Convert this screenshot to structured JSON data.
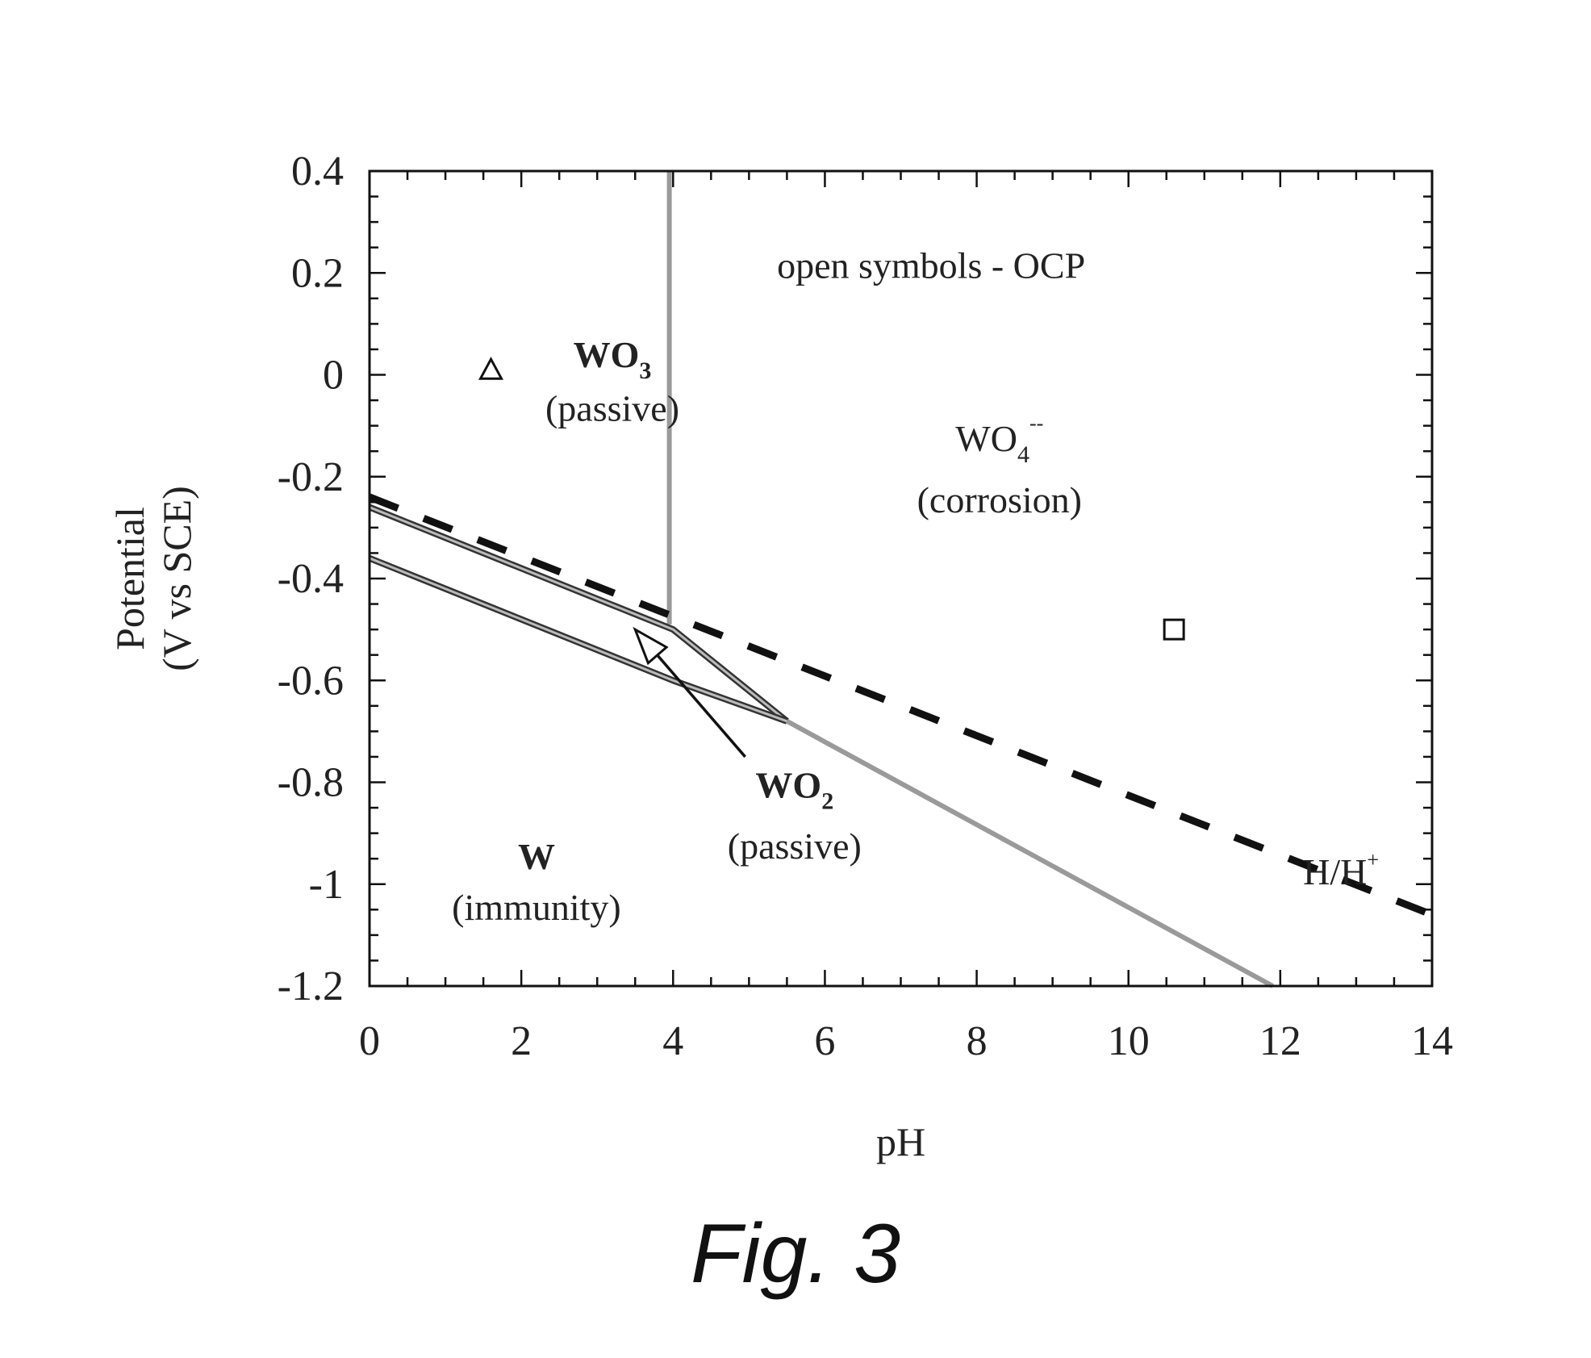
{
  "caption": "Fig. 3",
  "chart_data": {
    "type": "line",
    "xlabel": "pH",
    "ylabel_line1": "Potential",
    "ylabel_line2": "(V vs SCE)",
    "xlim": [
      0,
      14
    ],
    "ylim": [
      -1.2,
      0.4
    ],
    "xticks": [
      0,
      2,
      4,
      6,
      8,
      10,
      12,
      14
    ],
    "xtick_labels": [
      "0",
      "2",
      "4",
      "6",
      "8",
      "10",
      "12",
      "14"
    ],
    "yticks": [
      0.4,
      0.2,
      0,
      -0.2,
      -0.4,
      -0.6,
      -0.8,
      -1,
      -1.2
    ],
    "ytick_labels": [
      "0.4",
      "0.2",
      "0",
      "-0.2",
      "-0.4",
      "-0.6",
      "-0.8",
      "-1",
      "-1.2"
    ],
    "grid": false,
    "boundaries": [
      {
        "id": "wo3-wo4-boundary",
        "style": "gray",
        "points": [
          [
            3.95,
            0.4
          ],
          [
            3.95,
            -0.49
          ]
        ]
      },
      {
        "id": "wo3-wo2-boundary",
        "style": "double",
        "points": [
          [
            0,
            -0.26
          ],
          [
            4,
            -0.5
          ],
          [
            5.5,
            -0.68
          ]
        ]
      },
      {
        "id": "w-wo2-boundary",
        "style": "double",
        "points": [
          [
            0,
            -0.36
          ],
          [
            4,
            -0.6
          ],
          [
            5.5,
            -0.68
          ]
        ]
      },
      {
        "id": "wo2-wo4-boundary",
        "style": "gray",
        "points": [
          [
            5.5,
            -0.68
          ],
          [
            11.9,
            -1.2
          ]
        ]
      },
      {
        "id": "hydrogen-line",
        "style": "dashed",
        "points": [
          [
            0,
            -0.24
          ],
          [
            14,
            -1.06
          ]
        ]
      }
    ],
    "arrow": {
      "from": [
        4.95,
        -0.75
      ],
      "to": [
        3.5,
        -0.5
      ]
    },
    "markers": [
      {
        "shape": "triangle",
        "x": 1.6,
        "y": 0.01
      },
      {
        "shape": "square",
        "x": 10.6,
        "y": -0.5
      }
    ],
    "annotations": [
      {
        "id": "legend-note",
        "text": "open symbols - OCP",
        "x": 7.4,
        "y": 0.19,
        "bold": false
      },
      {
        "id": "wo3-name",
        "main": "WO",
        "sub": "3",
        "sup": "",
        "x": 3.2,
        "y": 0.015,
        "bold": true
      },
      {
        "id": "wo3-state",
        "text": "(passive)",
        "x": 3.2,
        "y": -0.09,
        "bold": false
      },
      {
        "id": "wo4-name",
        "main": "WO",
        "sub": "4",
        "sup": "--",
        "x": 8.3,
        "y": -0.15,
        "bold": false
      },
      {
        "id": "wo4-state",
        "text": "(corrosion)",
        "x": 8.3,
        "y": -0.27,
        "bold": false
      },
      {
        "id": "wo2-name",
        "main": "WO",
        "sub": "2",
        "sup": "",
        "x": 5.6,
        "y": -0.83,
        "bold": true
      },
      {
        "id": "wo2-state",
        "text": "(passive)",
        "x": 5.6,
        "y": -0.95,
        "bold": false
      },
      {
        "id": "w-name",
        "text": "W",
        "x": 2.2,
        "y": -0.97,
        "bold": true
      },
      {
        "id": "w-state",
        "text": "(immunity)",
        "x": 2.2,
        "y": -1.07,
        "bold": false
      },
      {
        "id": "hydrogen-label",
        "main": "H/H",
        "sub": "",
        "sup": "+",
        "x": 12.8,
        "y": -1.0,
        "bold": false
      }
    ]
  }
}
